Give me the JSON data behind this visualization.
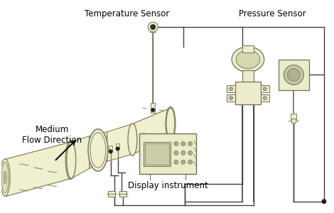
{
  "bg_color": "#ffffff",
  "pipe_fill": "#f0f0d0",
  "pipe_edge": "#808060",
  "device_fill": "#ececcc",
  "device_edge": "#707055",
  "wire_color": "#404040",
  "text_color": "#000000",
  "labels": {
    "temp_sensor": "Temperature Sensor",
    "pressure_sensor": "Pressure Sensor",
    "display": "Display instrument",
    "flow": "Medium\nFlow Direction"
  }
}
